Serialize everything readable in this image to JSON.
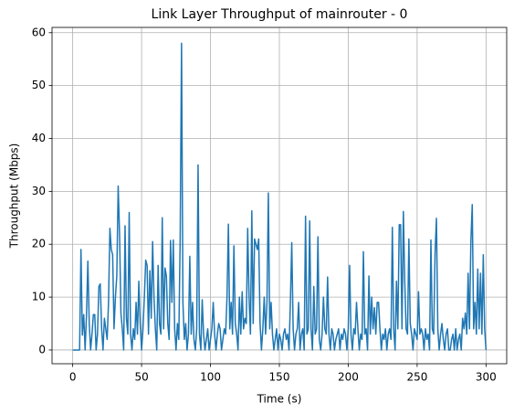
{
  "chart_data": {
    "type": "line",
    "title": "Link Layer Throughput of mainrouter - 0",
    "x_label": "Time (s)",
    "y_label": "Throughput (Mbps)",
    "xlim": [
      -15,
      315
    ],
    "xticks": [
      0,
      50,
      100,
      150,
      200,
      250,
      300
    ],
    "ylim": [
      -2.6,
      61
    ],
    "yticks": [
      0,
      10,
      20,
      30,
      40,
      50,
      60
    ],
    "grid": true,
    "x": [
      0,
      1,
      2,
      3,
      4,
      5,
      6,
      7,
      8,
      9,
      10,
      11,
      12,
      13,
      14,
      15,
      16,
      17,
      18,
      19,
      20,
      21,
      22,
      23,
      24,
      25,
      26,
      27,
      28,
      29,
      30,
      31,
      32,
      33,
      34,
      35,
      36,
      37,
      38,
      39,
      40,
      41,
      42,
      43,
      44,
      45,
      46,
      47,
      48,
      49,
      50,
      51,
      52,
      53,
      54,
      55,
      56,
      57,
      58,
      59,
      60,
      61,
      62,
      63,
      64,
      65,
      66,
      67,
      68,
      69,
      70,
      71,
      72,
      73,
      74,
      75,
      76,
      77,
      78,
      79,
      80,
      81,
      82,
      83,
      84,
      85,
      86,
      87,
      88,
      89,
      90,
      91,
      92,
      93,
      94,
      95,
      96,
      97,
      98,
      99,
      100,
      101,
      102,
      103,
      104,
      105,
      106,
      107,
      108,
      109,
      110,
      111,
      112,
      113,
      114,
      115,
      116,
      117,
      118,
      119,
      120,
      121,
      122,
      123,
      124,
      125,
      126,
      127,
      128,
      129,
      130,
      131,
      132,
      133,
      134,
      135,
      136,
      137,
      138,
      139,
      140,
      141,
      142,
      143,
      144,
      145,
      146,
      147,
      148,
      149,
      150,
      151,
      152,
      153,
      154,
      155,
      156,
      157,
      158,
      159,
      160,
      161,
      162,
      163,
      164,
      165,
      166,
      167,
      168,
      169,
      170,
      171,
      172,
      173,
      174,
      175,
      176,
      177,
      178,
      179,
      180,
      181,
      182,
      183,
      184,
      185,
      186,
      187,
      188,
      189,
      190,
      191,
      192,
      193,
      194,
      195,
      196,
      197,
      198,
      199,
      200,
      201,
      202,
      203,
      204,
      205,
      206,
      207,
      208,
      209,
      210,
      211,
      212,
      213,
      214,
      215,
      216,
      217,
      218,
      219,
      220,
      221,
      222,
      223,
      224,
      225,
      226,
      227,
      228,
      229,
      230,
      231,
      232,
      233,
      234,
      235,
      236,
      237,
      238,
      239,
      240,
      241,
      242,
      243,
      244,
      245,
      246,
      247,
      248,
      249,
      250,
      251,
      252,
      253,
      254,
      255,
      256,
      257,
      258,
      259,
      260,
      261,
      262,
      263,
      264,
      265,
      266,
      267,
      268,
      269,
      270,
      271,
      272,
      273,
      274,
      275,
      276,
      277,
      278,
      279,
      280,
      281,
      282,
      283,
      284,
      285,
      286,
      287,
      288,
      289,
      290,
      291,
      292,
      293,
      294,
      295,
      296,
      297,
      298,
      299,
      300
    ],
    "series": [
      {
        "color": "#1f77b4",
        "values": [
          0,
          0,
          0,
          0,
          0,
          0,
          19,
          2.8,
          6.7,
          0,
          6.5,
          16.8,
          5,
          0,
          3,
          6.7,
          6.7,
          0,
          3,
          12,
          12.5,
          4,
          0,
          6,
          4,
          2,
          9,
          23,
          19,
          18,
          4,
          10,
          14,
          31,
          22,
          7,
          4,
          0,
          23.5,
          6,
          3,
          26,
          3,
          0,
          4,
          2,
          9,
          3,
          13,
          5,
          0,
          4,
          10,
          17,
          16,
          3,
          15,
          6,
          20.5,
          10,
          4,
          0,
          16,
          5,
          3,
          25,
          4,
          15.5,
          14,
          5,
          2,
          20.7,
          9,
          20.8,
          4,
          0,
          5,
          2,
          21,
          58,
          9,
          2,
          5,
          0,
          3,
          17.7,
          3,
          9,
          2,
          0,
          4,
          35,
          3,
          0,
          9.5,
          3,
          0,
          2,
          4,
          0,
          2,
          4,
          9,
          3,
          0,
          3,
          5,
          4,
          0,
          2,
          4,
          3,
          10,
          23.8,
          4,
          9,
          3,
          19.7,
          5,
          3,
          0,
          10,
          3,
          11,
          4,
          6,
          5,
          23,
          10,
          3,
          26.3,
          5,
          21,
          20,
          19,
          21,
          5,
          0,
          4,
          10,
          3,
          9,
          29.7,
          4,
          9,
          3,
          0,
          2,
          4,
          0,
          3,
          2,
          0,
          3,
          4,
          2,
          3,
          0,
          9,
          20.3,
          4,
          0,
          3,
          4,
          9,
          0,
          3,
          4,
          0,
          25.3,
          3,
          4,
          24.4,
          4,
          0,
          12,
          3,
          4,
          21.4,
          2,
          0,
          3,
          10,
          4,
          3,
          13.8,
          3,
          0,
          4,
          3,
          0,
          2,
          3,
          4,
          0,
          3,
          2,
          4,
          3,
          0,
          4,
          16,
          3,
          0,
          4,
          3,
          9,
          4,
          0,
          3,
          2,
          18.6,
          3,
          4,
          0,
          14,
          3,
          10,
          4,
          8,
          3,
          9,
          9,
          4,
          0,
          3,
          2,
          4,
          0,
          3,
          4,
          2,
          23.2,
          4,
          0,
          13,
          4,
          23.7,
          23.7,
          4,
          26.2,
          13,
          4,
          3,
          21,
          5,
          3,
          0,
          4,
          3,
          2,
          11,
          3,
          4,
          3,
          0,
          4,
          2,
          3,
          0,
          20.8,
          4,
          3,
          18.3,
          24.9,
          4,
          0,
          3,
          5,
          2,
          0,
          3,
          4,
          0,
          0,
          2,
          3,
          0,
          4,
          0,
          2,
          3,
          0,
          6,
          4,
          7,
          3,
          14.5,
          4,
          20.5,
          27.5,
          4,
          9,
          3,
          15.3,
          4,
          14.5,
          3,
          18,
          4,
          0
        ]
      }
    ]
  }
}
